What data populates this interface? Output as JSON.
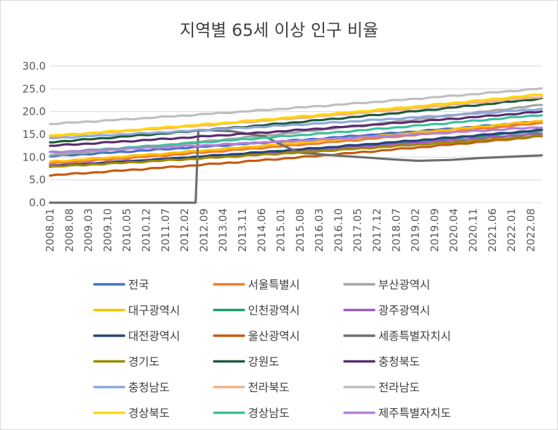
{
  "chart_data": {
    "type": "line",
    "title": "지역별 65세 이상 인구 비율",
    "xlabel": "",
    "ylabel": "",
    "ylim": [
      0,
      30
    ],
    "yticks": [
      "0.0",
      "5.0",
      "10.0",
      "15.0",
      "20.0",
      "25.0",
      "30.0"
    ],
    "x_start": "2008.01",
    "x_end": "2022.12",
    "xtick_labels": [
      "2008.01",
      "2008.08",
      "2009.03",
      "2009.10",
      "2010.05",
      "2010.12",
      "2011.07",
      "2012.02",
      "2012.09",
      "2013.04",
      "2013.11",
      "2014.06",
      "2015.01",
      "2015.08",
      "2016.03",
      "2016.10",
      "2017.05",
      "2017.12",
      "2018.07",
      "2019.02",
      "2019.09",
      "2020.04",
      "2020.11",
      "2021.06",
      "2022.01",
      "2022.08"
    ],
    "grid": "horizontal",
    "legend_position": "bottom",
    "series": [
      {
        "name": "전국",
        "color": "#4472C4",
        "start": 10.2,
        "end": 17.9
      },
      {
        "name": "서울특별시",
        "color": "#ED7D31",
        "start": 8.6,
        "end": 17.5
      },
      {
        "name": "부산광역시",
        "color": "#A5A5A5",
        "start": 10.4,
        "end": 21.5
      },
      {
        "name": "대구광역시",
        "color": "#FFC000",
        "start": 9.0,
        "end": 18.0
      },
      {
        "name": "인천광역시",
        "color": "#1E9D6B",
        "start": 8.0,
        "end": 15.8
      },
      {
        "name": "광주광역시",
        "color": "#9E5BC4",
        "start": 8.2,
        "end": 15.2
      },
      {
        "name": "대전광역시",
        "color": "#264478",
        "start": 8.0,
        "end": 16.0
      },
      {
        "name": "울산광역시",
        "color": "#C55A11",
        "start": 6.0,
        "end": 14.6
      },
      {
        "name": "세종특별자치시",
        "color": "#6E6E6E"
      },
      {
        "name": "경기도",
        "color": "#9E8A00",
        "start": 7.9,
        "end": 14.7
      },
      {
        "name": "강원도",
        "color": "#1D5B3A",
        "start": 13.3,
        "end": 22.9
      },
      {
        "name": "충청북도",
        "color": "#5B2C6F",
        "start": 12.5,
        "end": 20.0
      },
      {
        "name": "충청남도",
        "color": "#8EA9DB",
        "start": 14.2,
        "end": 20.6
      },
      {
        "name": "전라북도",
        "color": "#F4B183",
        "start": 14.6,
        "end": 23.3
      },
      {
        "name": "전라남도",
        "color": "#BFBFBF",
        "start": 17.3,
        "end": 25.1
      },
      {
        "name": "경상북도",
        "color": "#FFD700",
        "start": 14.7,
        "end": 23.8
      },
      {
        "name": "경상남도",
        "color": "#3CC19A",
        "start": 11.0,
        "end": 19.3
      },
      {
        "name": "제주특별자치도",
        "color": "#B580D9",
        "start": 11.1,
        "end": 16.6
      }
    ],
    "sejong_points": [
      {
        "x": "2008.01",
        "y": 0.0
      },
      {
        "x": "2012.06",
        "y": 0.0
      },
      {
        "x": "2012.07",
        "y": 16.0
      },
      {
        "x": "2013.07",
        "y": 15.7
      },
      {
        "x": "2014.07",
        "y": 14.6
      },
      {
        "x": "2015.02",
        "y": 12.5
      },
      {
        "x": "2015.08",
        "y": 11.0
      },
      {
        "x": "2016.06",
        "y": 10.5
      },
      {
        "x": "2017.06",
        "y": 10.0
      },
      {
        "x": "2018.06",
        "y": 9.5
      },
      {
        "x": "2019.03",
        "y": 9.2
      },
      {
        "x": "2020.03",
        "y": 9.4
      },
      {
        "x": "2021.01",
        "y": 9.8
      },
      {
        "x": "2022.12",
        "y": 10.4
      }
    ]
  }
}
